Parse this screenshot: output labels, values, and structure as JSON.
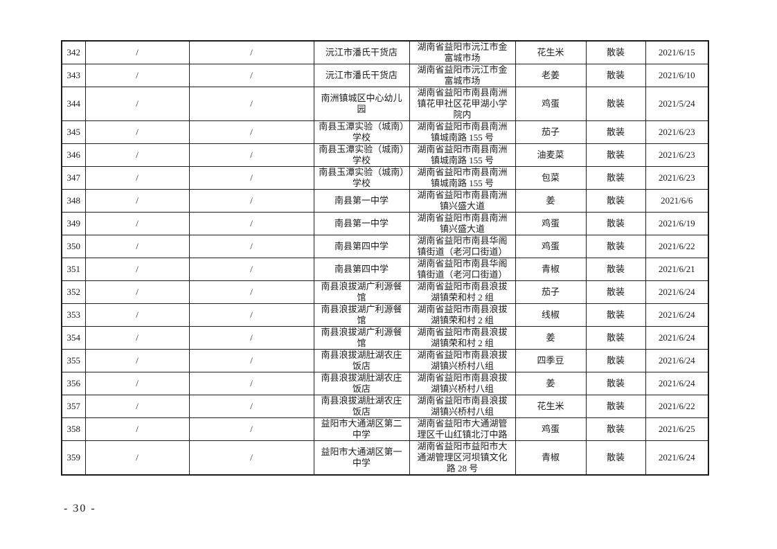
{
  "page": {
    "page_number_label": "- 30 -"
  },
  "table": {
    "col_keys": [
      "no",
      "col2",
      "col3",
      "name",
      "address",
      "food",
      "packaging",
      "date"
    ],
    "rows": [
      {
        "no": "342",
        "col2": "/",
        "col3": "/",
        "name": "沅江市潘氏干货店",
        "address": "湖南省益阳市沅江市金富城市场",
        "food": "花生米",
        "packaging": "散装",
        "date": "2021/6/15"
      },
      {
        "no": "343",
        "col2": "/",
        "col3": "/",
        "name": "沅江市潘氏干货店",
        "address": "湖南省益阳市沅江市金富城市场",
        "food": "老姜",
        "packaging": "散装",
        "date": "2021/6/10"
      },
      {
        "no": "344",
        "col2": "/",
        "col3": "/",
        "name": "南洲镇城区中心幼儿园",
        "address": "湖南省益阳市南县南洲镇花甲社区花甲湖小学院内",
        "food": "鸡蛋",
        "packaging": "散装",
        "date": "2021/5/24"
      },
      {
        "no": "345",
        "col2": "/",
        "col3": "/",
        "name": "南县玉潭实验（城南）学校",
        "address": "湖南省益阳市南县南洲镇城南路 155 号",
        "food": "茄子",
        "packaging": "散装",
        "date": "2021/6/23"
      },
      {
        "no": "346",
        "col2": "/",
        "col3": "/",
        "name": "南县玉潭实验（城南）学校",
        "address": "湖南省益阳市南县南洲镇城南路 155 号",
        "food": "油麦菜",
        "packaging": "散装",
        "date": "2021/6/23"
      },
      {
        "no": "347",
        "col2": "/",
        "col3": "/",
        "name": "南县玉潭实验（城南）学校",
        "address": "湖南省益阳市南县南洲镇城南路 155 号",
        "food": "包菜",
        "packaging": "散装",
        "date": "2021/6/23"
      },
      {
        "no": "348",
        "col2": "/",
        "col3": "/",
        "name": "南县第一中学",
        "address": "湖南省益阳市南县南洲镇兴盛大道",
        "food": "姜",
        "packaging": "散装",
        "date": "2021/6/6"
      },
      {
        "no": "349",
        "col2": "/",
        "col3": "/",
        "name": "南县第一中学",
        "address": "湖南省益阳市南县南洲镇兴盛大道",
        "food": "鸡蛋",
        "packaging": "散装",
        "date": "2021/6/19"
      },
      {
        "no": "350",
        "col2": "/",
        "col3": "/",
        "name": "南县第四中学",
        "address": "湖南省益阳市南县华阁镇街道（老河口街道）",
        "food": "鸡蛋",
        "packaging": "散装",
        "date": "2021/6/22"
      },
      {
        "no": "351",
        "col2": "/",
        "col3": "/",
        "name": "南县第四中学",
        "address": "湖南省益阳市南县华阁镇街道（老河口街道）",
        "food": "青椒",
        "packaging": "散装",
        "date": "2021/6/21"
      },
      {
        "no": "352",
        "col2": "/",
        "col3": "/",
        "name": "南县浪拔湖广利源餐馆",
        "address": "湖南省益阳市南县浪拔湖镇荣和村 2 组",
        "food": "茄子",
        "packaging": "散装",
        "date": "2021/6/24"
      },
      {
        "no": "353",
        "col2": "/",
        "col3": "/",
        "name": "南县浪拔湖广利源餐馆",
        "address": "湖南省益阳市南县浪拔湖镇荣和村 2 组",
        "food": "线椒",
        "packaging": "散装",
        "date": "2021/6/24"
      },
      {
        "no": "354",
        "col2": "/",
        "col3": "/",
        "name": "南县浪拔湖广利源餐馆",
        "address": "湖南省益阳市南县浪拔湖镇荣和村 2 组",
        "food": "姜",
        "packaging": "散装",
        "date": "2021/6/24"
      },
      {
        "no": "355",
        "col2": "/",
        "col3": "/",
        "name": "南县浪拔湖肚湖农庄饭店",
        "address": "湖南省益阳市南县浪拔湖镇兴桥村八组",
        "food": "四季豆",
        "packaging": "散装",
        "date": "2021/6/24"
      },
      {
        "no": "356",
        "col2": "/",
        "col3": "/",
        "name": "南县浪拔湖肚湖农庄饭店",
        "address": "湖南省益阳市南县浪拔湖镇兴桥村八组",
        "food": "姜",
        "packaging": "散装",
        "date": "2021/6/24"
      },
      {
        "no": "357",
        "col2": "/",
        "col3": "/",
        "name": "南县浪拔湖肚湖农庄饭店",
        "address": "湖南省益阳市南县浪拔湖镇兴桥村八组",
        "food": "花生米",
        "packaging": "散装",
        "date": "2021/6/22"
      },
      {
        "no": "358",
        "col2": "/",
        "col3": "/",
        "name": "益阳市大通湖区第二中学",
        "address": "湖南省益阳市大通湖管理区千山红镇北汀中路",
        "food": "鸡蛋",
        "packaging": "散装",
        "date": "2021/6/25"
      },
      {
        "no": "359",
        "col2": "/",
        "col3": "/",
        "name": "益阳市大通湖区第一中学",
        "address": "湖南省益阳市益阳市大通湖管理区河坝镇文化路 28 号",
        "food": "青椒",
        "packaging": "散装",
        "date": "2021/6/24"
      }
    ]
  }
}
